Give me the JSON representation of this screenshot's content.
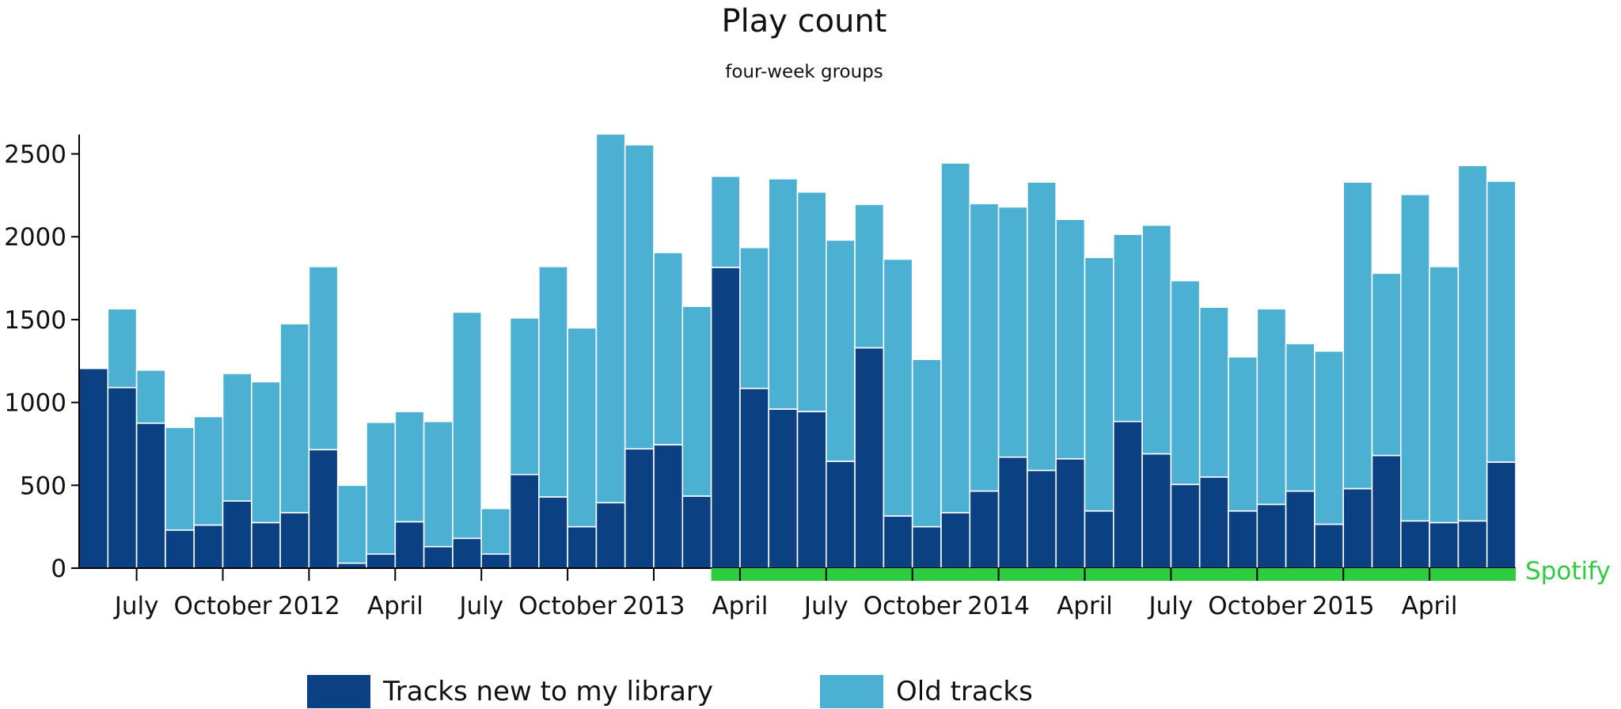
{
  "chart_data": {
    "type": "bar",
    "stacked": true,
    "title": "Play count",
    "subtitle": "four-week groups",
    "ylim": [
      0,
      2620
    ],
    "yticks": [
      0,
      500,
      1000,
      1500,
      2000,
      2500
    ],
    "series": [
      {
        "name": "Tracks new to my library",
        "color": "#0b4182",
        "values": [
          1205,
          1090,
          875,
          230,
          260,
          405,
          275,
          335,
          715,
          30,
          85,
          280,
          130,
          180,
          85,
          565,
          430,
          250,
          395,
          720,
          745,
          435,
          1815,
          1085,
          960,
          945,
          645,
          1330,
          315,
          250,
          335,
          465,
          670,
          590,
          660,
          345,
          885,
          690,
          505,
          550,
          345,
          385,
          465,
          265,
          480,
          680,
          285,
          275,
          285,
          640
        ]
      },
      {
        "name": "Old tracks",
        "color": "#4cb0d3",
        "values": [
          0,
          475,
          320,
          620,
          655,
          770,
          850,
          1140,
          1105,
          470,
          795,
          665,
          755,
          1365,
          275,
          945,
          1390,
          1200,
          2225,
          1835,
          1160,
          1145,
          550,
          850,
          1390,
          1325,
          1335,
          865,
          1550,
          1010,
          2110,
          1735,
          1510,
          1740,
          1445,
          1530,
          1130,
          1380,
          1230,
          1025,
          930,
          1180,
          890,
          1045,
          1850,
          1100,
          1970,
          1545,
          2145,
          1695
        ]
      }
    ],
    "x_tick_labels": [
      "July",
      "October",
      "2012",
      "April",
      "July",
      "October",
      "2013",
      "April",
      "July",
      "October",
      "2014",
      "April",
      "July",
      "October",
      "2015",
      "April"
    ],
    "annotation": {
      "label": "Spotify",
      "color": "#2ecc40",
      "from_bar": 22
    },
    "legend_position": "bottom",
    "grid": false
  }
}
